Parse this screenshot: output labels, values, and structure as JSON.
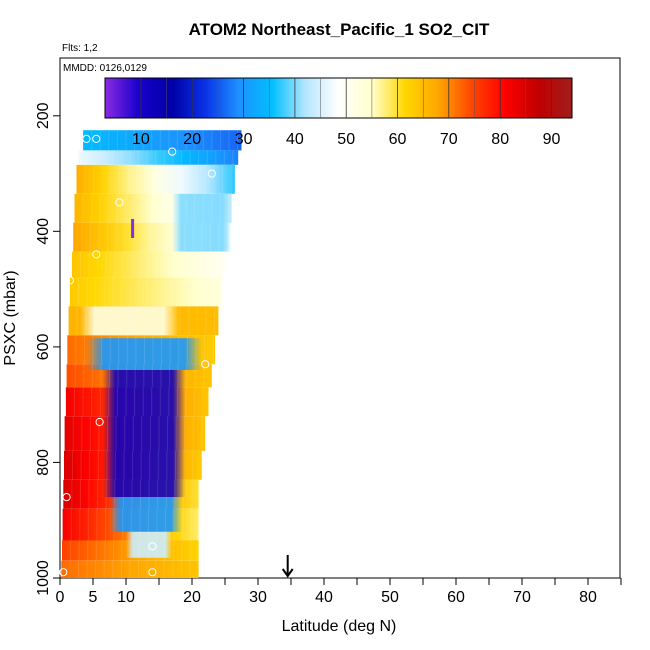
{
  "chart_data": {
    "type": "heatmap",
    "title": "ATOM2 Northeast_Pacific_1 SO2_CIT",
    "flights_label": "Flts: 1,2",
    "date_label": "MMDD: 0126,0129",
    "xlabel": "Latitude (deg N)",
    "ylabel": "PSXC (mbar)",
    "xlim": [
      0,
      85
    ],
    "ylim": [
      1000,
      100
    ],
    "x_ticks": [
      0,
      5,
      10,
      20,
      30,
      40,
      50,
      60,
      70,
      80
    ],
    "x_ticks_minor": [
      15,
      25,
      35,
      45,
      55,
      65,
      75,
      85
    ],
    "y_ticks": [
      200,
      400,
      600,
      800,
      1000
    ],
    "colorbar": {
      "range": [
        3,
        94
      ],
      "ticks": [
        10,
        20,
        30,
        40,
        50,
        60,
        70,
        80,
        90
      ],
      "colors": [
        "#8b2be2",
        "#1a00cc",
        "#0000a6",
        "#0a32e6",
        "#1e90ff",
        "#00bfff",
        "#b4e6ff",
        "#ffffff",
        "#ffffcc",
        "#ffd700",
        "#ffa500",
        "#ff4500",
        "#ff0000",
        "#c00000",
        "#a01e1e"
      ]
    },
    "rows": [
      {
        "p_top": 225,
        "p_bot": 260,
        "lat_start": 3.5,
        "lat_end": 27.5,
        "v_start": 35,
        "v_end": 26
      },
      {
        "p_top": 260,
        "p_bot": 285,
        "lat_start": 2.8,
        "lat_end": 27.0,
        "v_start": 47,
        "v_end": 28
      },
      {
        "p_top": 285,
        "p_bot": 335,
        "lat_start": 2.5,
        "lat_end": 26.5,
        "v_start": 67,
        "v_end": 37
      },
      {
        "p_top": 335,
        "p_bot": 385,
        "lat_start": 2.2,
        "lat_end": 26.0,
        "v_start": 66,
        "v_end": 43
      },
      {
        "p_top": 385,
        "p_bot": 435,
        "lat_start": 2.0,
        "lat_end": 25.5,
        "v_start": 68,
        "v_end": 45
      },
      {
        "p_top": 435,
        "p_bot": 480,
        "lat_start": 1.8,
        "lat_end": 25.0,
        "v_start": 64,
        "v_end": 50
      },
      {
        "p_top": 480,
        "p_bot": 530,
        "lat_start": 1.5,
        "lat_end": 24.5,
        "v_start": 63,
        "v_end": 53
      },
      {
        "p_top": 530,
        "p_bot": 580,
        "lat_start": 1.3,
        "lat_end": 24.0,
        "v_start": 66,
        "v_end": 65
      },
      {
        "p_top": 580,
        "p_bot": 630,
        "lat_start": 1.1,
        "lat_end": 23.5,
        "v_start": 72,
        "v_end": 63
      },
      {
        "p_top": 630,
        "p_bot": 670,
        "lat_start": 1.0,
        "lat_end": 23.0,
        "v_start": 74,
        "v_end": 64
      },
      {
        "p_top": 670,
        "p_bot": 720,
        "lat_start": 0.9,
        "lat_end": 22.5,
        "v_start": 82,
        "v_end": 64
      },
      {
        "p_top": 720,
        "p_bot": 780,
        "lat_start": 0.7,
        "lat_end": 22.0,
        "v_start": 84,
        "v_end": 64
      },
      {
        "p_top": 780,
        "p_bot": 830,
        "lat_start": 0.6,
        "lat_end": 21.5,
        "v_start": 85,
        "v_end": 63
      },
      {
        "p_top": 830,
        "p_bot": 880,
        "lat_start": 0.5,
        "lat_end": 21.0,
        "v_start": 85,
        "v_end": 60
      },
      {
        "p_top": 880,
        "p_bot": 935,
        "lat_start": 0.4,
        "lat_end": 21.0,
        "v_start": 82,
        "v_end": 58
      },
      {
        "p_top": 935,
        "p_bot": 970,
        "lat_start": 0.3,
        "lat_end": 21.0,
        "v_start": 75,
        "v_end": 62
      },
      {
        "p_top": 970,
        "p_bot": 1000,
        "lat_start": 0.2,
        "lat_end": 21.0,
        "v_start": 72,
        "v_end": 64
      }
    ],
    "blobs": [
      {
        "p_top": 640,
        "p_bot": 860,
        "lat_start": 6.5,
        "lat_end": 19.0,
        "v": 12
      },
      {
        "p_top": 585,
        "p_bot": 640,
        "lat_start": 4.0,
        "lat_end": 21.5,
        "v": 30
      },
      {
        "p_top": 860,
        "p_bot": 920,
        "lat_start": 7.5,
        "lat_end": 18.5,
        "v": 30
      },
      {
        "p_top": 920,
        "p_bot": 965,
        "lat_start": 10.0,
        "lat_end": 17.0,
        "v": 44
      },
      {
        "p_top": 335,
        "p_bot": 435,
        "lat_start": 17.0,
        "lat_end": 26.0,
        "v": 40
      },
      {
        "p_top": 530,
        "p_bot": 580,
        "lat_start": 3.0,
        "lat_end": 18.0,
        "v": 52
      }
    ],
    "points": [
      {
        "lat": 4.0,
        "p": 240
      },
      {
        "lat": 5.5,
        "p": 240
      },
      {
        "lat": 17.0,
        "p": 262
      },
      {
        "lat": 23.0,
        "p": 300
      },
      {
        "lat": 9.0,
        "p": 350
      },
      {
        "lat": 5.5,
        "p": 440
      },
      {
        "lat": 1.5,
        "p": 485
      },
      {
        "lat": 22.0,
        "p": 630
      },
      {
        "lat": 6.0,
        "p": 730
      },
      {
        "lat": 1.0,
        "p": 860
      },
      {
        "lat": 14.0,
        "p": 945
      },
      {
        "lat": 0.5,
        "p": 990
      },
      {
        "lat": 14.0,
        "p": 990
      },
      {
        "lat": 11.0,
        "p": 205
      }
    ],
    "markers": [
      {
        "name": "purple-marker",
        "lat": 11.0,
        "color": "#8b2be2",
        "position": "top"
      },
      {
        "name": "black-arrow",
        "lat": 34.5,
        "color": "#000000",
        "position": "bottom"
      }
    ]
  }
}
